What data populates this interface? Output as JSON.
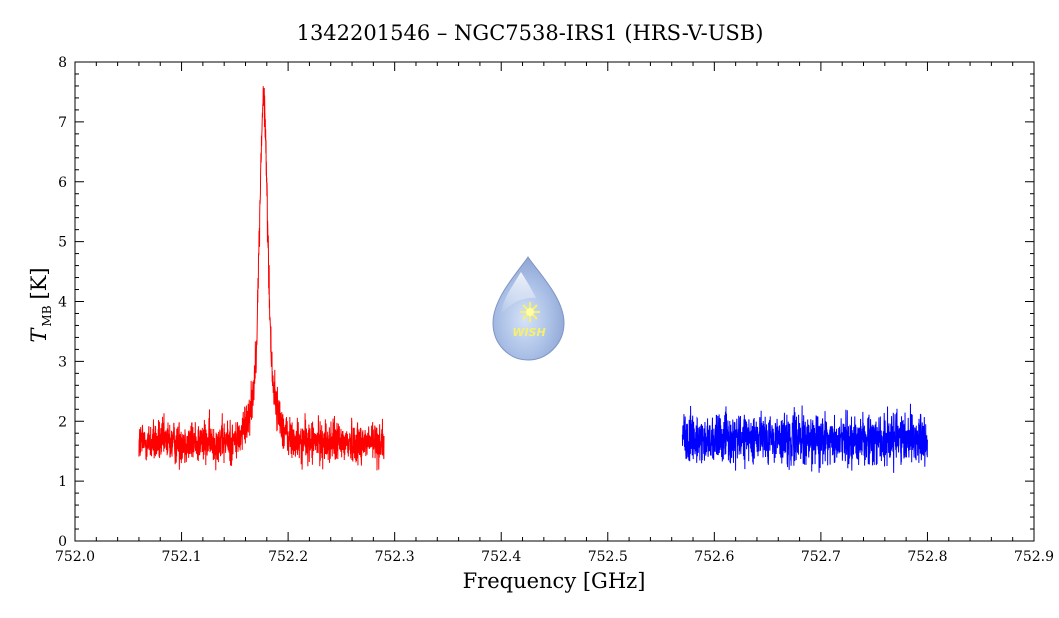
{
  "chart_data": {
    "type": "line",
    "title": "1342201546 – NGC7538-IRS1 (HRS-V-USB)",
    "xlabel": "Frequency [GHz]",
    "ylabel_main": "T",
    "ylabel_sub": "MB",
    "ylabel_unit": "[K]",
    "xlim": [
      752.0,
      752.9
    ],
    "ylim": [
      0,
      8
    ],
    "xticks": [
      "752.0",
      "752.1",
      "752.2",
      "752.3",
      "752.4",
      "752.5",
      "752.6",
      "752.7",
      "752.8",
      "752.9"
    ],
    "yticks": [
      "0",
      "1",
      "2",
      "3",
      "4",
      "5",
      "6",
      "7",
      "8"
    ],
    "grid": false,
    "logo_text": "WISH",
    "series": [
      {
        "color": "#ff0000",
        "x_range": [
          752.06,
          752.29
        ],
        "baseline": 1.65,
        "noise": 0.18,
        "peak": {
          "x": 752.177,
          "y": 7.35
        }
      },
      {
        "color": "#0000ff",
        "x_range": [
          752.57,
          752.8
        ],
        "baseline": 1.7,
        "noise": 0.2
      }
    ]
  }
}
